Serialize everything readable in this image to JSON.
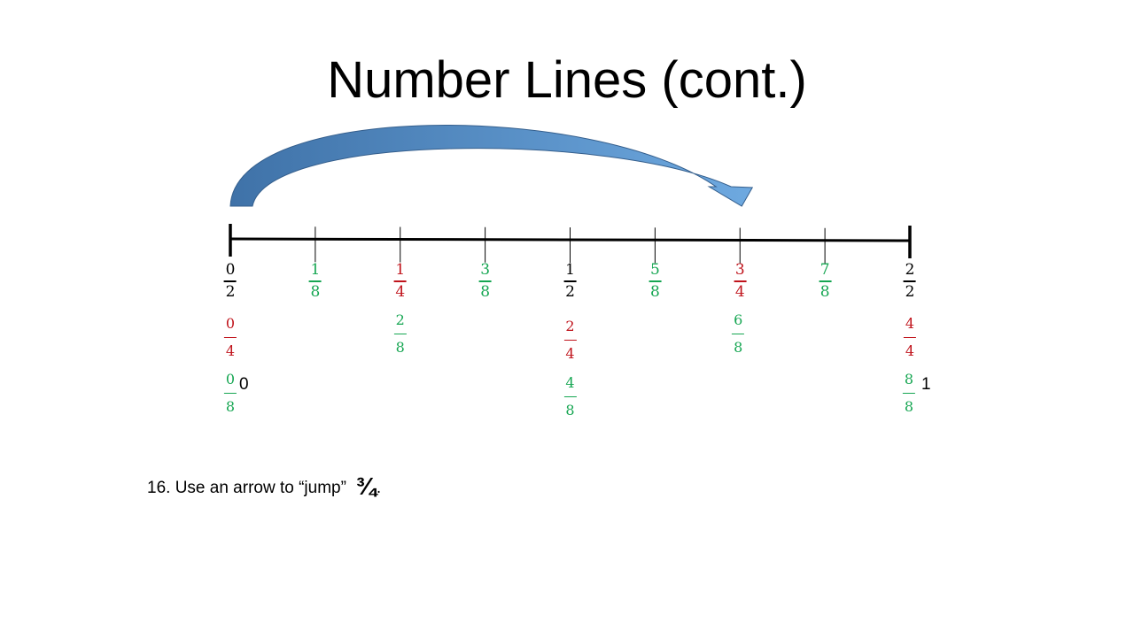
{
  "title": "Number Lines (cont.)",
  "colors": {
    "black": "#000000",
    "green": "#16a652",
    "red": "#c0141c",
    "arrow_dark": "#3f72a8",
    "arrow_light": "#6ea9e0"
  },
  "number_line": {
    "start_label": "0",
    "end_label": "1",
    "arrow": {
      "from_value": 0,
      "to_value": 0.75
    },
    "ticks": [
      {
        "value": 0,
        "major": true
      },
      {
        "value": 0.125,
        "major": false
      },
      {
        "value": 0.25,
        "major": false
      },
      {
        "value": 0.375,
        "major": false
      },
      {
        "value": 0.5,
        "major": false
      },
      {
        "value": 0.625,
        "major": false
      },
      {
        "value": 0.75,
        "major": false
      },
      {
        "value": 0.875,
        "major": false
      },
      {
        "value": 1,
        "major": true
      }
    ]
  },
  "fractions": [
    {
      "value": 0,
      "row": "top",
      "color": "black",
      "num": "0",
      "den": "2"
    },
    {
      "value": 0.125,
      "row": "top",
      "color": "green",
      "num": "1",
      "den": "8"
    },
    {
      "value": 0.25,
      "row": "top",
      "color": "red",
      "num": "1",
      "den": "4"
    },
    {
      "value": 0.375,
      "row": "top",
      "color": "green",
      "num": "3",
      "den": "8"
    },
    {
      "value": 0.5,
      "row": "top",
      "color": "black",
      "num": "1",
      "den": "2"
    },
    {
      "value": 0.625,
      "row": "top",
      "color": "green",
      "num": "5",
      "den": "8"
    },
    {
      "value": 0.75,
      "row": "top",
      "color": "red",
      "num": "3",
      "den": "4"
    },
    {
      "value": 0.875,
      "row": "top",
      "color": "green",
      "num": "7",
      "den": "8"
    },
    {
      "value": 1,
      "row": "top",
      "color": "black",
      "num": "2",
      "den": "2"
    },
    {
      "value": 0,
      "row": "second",
      "color": "red",
      "num": "0",
      "den": "4"
    },
    {
      "value": 0.25,
      "row": "second",
      "color": "green",
      "num": "2",
      "den": "8"
    },
    {
      "value": 0.5,
      "row": "second",
      "color": "red",
      "num": "2",
      "den": "4"
    },
    {
      "value": 0.75,
      "row": "second",
      "color": "green",
      "num": "6",
      "den": "8"
    },
    {
      "value": 1,
      "row": "second",
      "color": "red",
      "num": "4",
      "den": "4"
    },
    {
      "value": 0,
      "row": "third",
      "color": "green",
      "num": "0",
      "den": "8"
    },
    {
      "value": 0.5,
      "row": "third",
      "color": "green",
      "num": "4",
      "den": "8"
    },
    {
      "value": 1,
      "row": "third",
      "color": "green",
      "num": "8",
      "den": "8"
    }
  ],
  "question": {
    "text": "16. Use an arrow to “jump”  ",
    "fraction": "¾",
    "end": "."
  }
}
